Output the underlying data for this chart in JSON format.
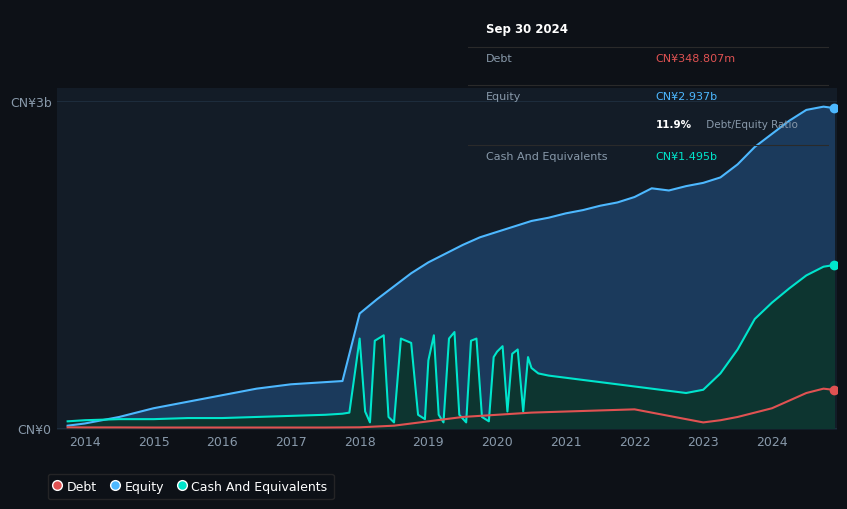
{
  "bg_color": "#0d1117",
  "plot_bg_color": "#131c27",
  "title_box": {
    "date": "Sep 30 2024",
    "debt_label": "Debt",
    "debt_value": "CN¥348.807m",
    "debt_color": "#e05252",
    "equity_label": "Equity",
    "equity_value": "CN¥2.937b",
    "equity_color": "#4db8ff",
    "ratio_bold": "11.9%",
    "ratio_plain": " Debt/Equity Ratio",
    "cash_label": "Cash And Equivalents",
    "cash_value": "CN¥1.495b",
    "cash_color": "#00e5cc"
  },
  "ytick_labels": [
    "CN¥0",
    "CN¥3b"
  ],
  "xlabel_years": [
    "2014",
    "2015",
    "2016",
    "2017",
    "2018",
    "2019",
    "2020",
    "2021",
    "2022",
    "2023",
    "2024"
  ],
  "legend": [
    {
      "label": "Debt",
      "color": "#e05252"
    },
    {
      "label": "Equity",
      "color": "#4db8ff"
    },
    {
      "label": "Cash And Equivalents",
      "color": "#00e5cc"
    }
  ],
  "equity_color": "#4db8ff",
  "equity_fill": "#1b3a5c",
  "debt_color": "#e05252",
  "cash_color": "#00e5cc",
  "cash_fill": "#0d3530",
  "grid_color": "#1e2d3d",
  "tick_color": "#8899aa"
}
